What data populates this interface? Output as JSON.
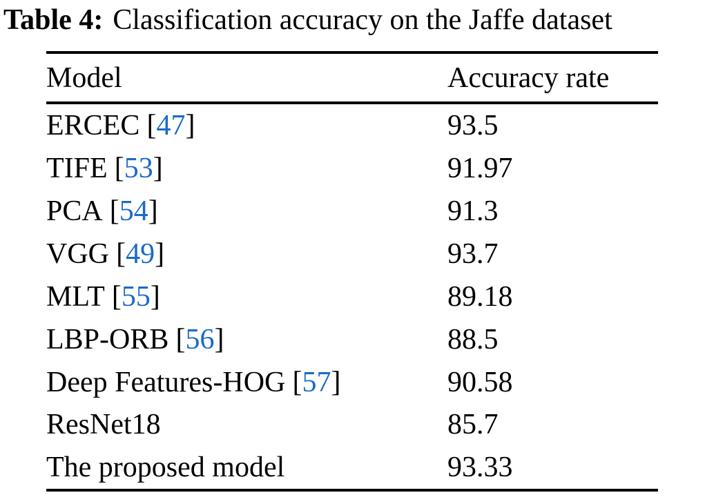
{
  "page": {
    "caption": {
      "label": "Table 4:",
      "text": "Classification accuracy on the Jaffe dataset"
    }
  },
  "table": {
    "columns": [
      "Model",
      "Accuracy rate"
    ],
    "citation_brackets": {
      "open": "[",
      "close": "]"
    },
    "rows": [
      {
        "model": "ERCEC",
        "citation": "47",
        "accuracy": "93.5"
      },
      {
        "model": "TIFE",
        "citation": "53",
        "accuracy": "91.97"
      },
      {
        "model": "PCA",
        "citation": "54",
        "accuracy": "91.3"
      },
      {
        "model": "VGG",
        "citation": "49",
        "accuracy": "93.7"
      },
      {
        "model": "MLT",
        "citation": "55",
        "accuracy": "89.18"
      },
      {
        "model": "LBP-ORB",
        "citation": "56",
        "accuracy": "88.5"
      },
      {
        "model": "Deep Features-HOG",
        "citation": "57",
        "accuracy": "90.58"
      },
      {
        "model": "ResNet18",
        "citation": null,
        "accuracy": "85.7"
      },
      {
        "model": "The proposed model",
        "citation": null,
        "accuracy": "93.33"
      }
    ]
  },
  "colors": {
    "background": "#ffffff",
    "text": "#000000",
    "citation_link": "#1b6ac9",
    "rule": "#000000"
  },
  "chart_data": {
    "type": "table",
    "title": "Table 4: Classification accuracy on the Jaffe dataset",
    "columns": [
      "Model",
      "Accuracy rate"
    ],
    "categories": [
      "ERCEC [47]",
      "TIFE [53]",
      "PCA [54]",
      "VGG [49]",
      "MLT [55]",
      "LBP-ORB [56]",
      "Deep Features-HOG [57]",
      "ResNet18",
      "The proposed model"
    ],
    "values": [
      93.5,
      91.97,
      91.3,
      93.7,
      89.18,
      88.5,
      90.58,
      85.7,
      93.33
    ]
  }
}
